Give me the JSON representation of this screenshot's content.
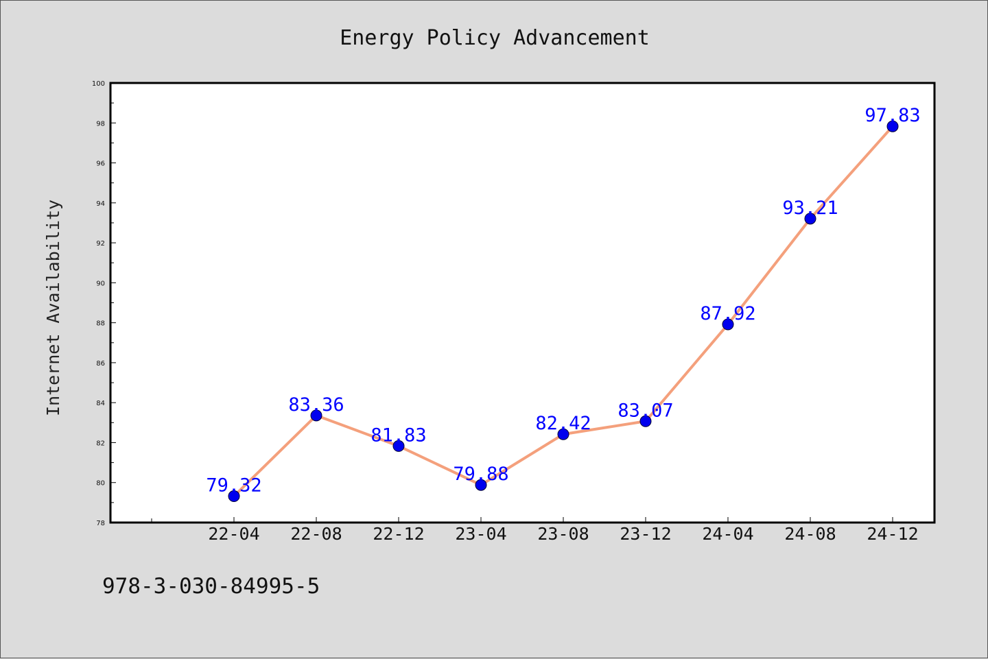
{
  "chart_data": {
    "type": "line",
    "title": "Energy Policy Advancement",
    "xlabel": "",
    "ylabel": "Internet Availability",
    "categories": [
      "22-04",
      "22-08",
      "22-12",
      "23-04",
      "23-08",
      "23-12",
      "24-04",
      "24-08",
      "24-12"
    ],
    "values": [
      79.32,
      83.36,
      81.83,
      79.88,
      82.42,
      83.07,
      87.92,
      93.21,
      97.83
    ],
    "data_labels": [
      "79.32",
      "83.36",
      "81.83",
      "79.88",
      "82.42",
      "83.07",
      "87.92",
      "93.21",
      "97.83"
    ],
    "ylim": [
      78,
      100
    ],
    "yticks": [
      "78",
      "80",
      "82",
      "84",
      "86",
      "88",
      "90",
      "92",
      "94",
      "96",
      "98",
      "100"
    ],
    "grid": false,
    "legend": "none",
    "colors": {
      "line": "#f4a07c",
      "marker": "#0000ee",
      "data_label": "#0000ff",
      "plot_bg": "#ffffff",
      "page_bg": "#dcdcdc"
    }
  },
  "footer": {
    "isbn": "978-3-030-84995-5"
  }
}
